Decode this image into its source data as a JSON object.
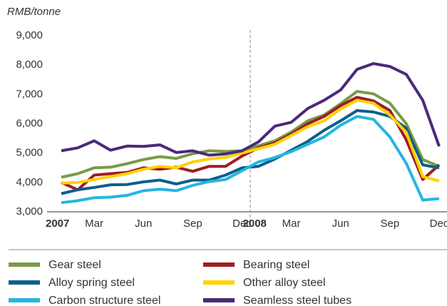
{
  "chart_data": {
    "type": "line",
    "y_axis_label": "RMB/tonne",
    "categories": [
      "2007",
      null,
      "Mar",
      null,
      null,
      "Jun",
      null,
      null,
      "Sep",
      null,
      null,
      "Dec",
      "2008",
      null,
      "Mar",
      null,
      null,
      "Jun",
      null,
      null,
      "Sep",
      null,
      null,
      "Dec"
    ],
    "ylim": [
      3000,
      9000
    ],
    "yticks": [
      {
        "value": 3000,
        "label": "3,000"
      },
      {
        "value": 4000,
        "label": "4,000"
      },
      {
        "value": 5000,
        "label": "5,000"
      },
      {
        "value": 6000,
        "label": "6,000"
      },
      {
        "value": 7000,
        "label": "7,000"
      },
      {
        "value": 8000,
        "label": "8,000"
      },
      {
        "value": 9000,
        "label": "9,000"
      }
    ],
    "series": [
      {
        "name": "Gear steel",
        "color": "#7a9a48",
        "values": [
          4180,
          4300,
          4500,
          4520,
          4640,
          4780,
          4880,
          4820,
          4980,
          5080,
          5060,
          5080,
          5250,
          5420,
          5720,
          6100,
          6300,
          6680,
          7100,
          7020,
          6700,
          6000,
          4780,
          4550
        ]
      },
      {
        "name": "Bearing steel",
        "color": "#a01c22",
        "values": [
          4000,
          3750,
          4250,
          4300,
          4340,
          4500,
          4450,
          4520,
          4380,
          4550,
          4550,
          4900,
          5180,
          5350,
          5650,
          6000,
          6250,
          6620,
          6900,
          6780,
          6450,
          5450,
          4100,
          4600
        ]
      },
      {
        "name": "Alloy spring steel",
        "color": "#0d5f8a",
        "values": [
          3620,
          3750,
          3830,
          3920,
          3930,
          4020,
          4080,
          3950,
          4080,
          4080,
          4250,
          4500,
          4550,
          4800,
          5100,
          5400,
          5780,
          6100,
          6450,
          6400,
          6250,
          5850,
          4600,
          4500
        ]
      },
      {
        "name": "Other alloy steel",
        "color": "#ffd200",
        "values": [
          3980,
          4000,
          4100,
          4200,
          4300,
          4450,
          4550,
          4500,
          4700,
          4800,
          4850,
          5000,
          5150,
          5300,
          5600,
          5900,
          6100,
          6500,
          6800,
          6700,
          6300,
          5700,
          4200,
          4050
        ]
      },
      {
        "name": "Carbon structure steel",
        "color": "#26b5e0",
        "values": [
          3310,
          3380,
          3480,
          3500,
          3560,
          3720,
          3770,
          3720,
          3900,
          4030,
          4100,
          4400,
          4700,
          4850,
          5050,
          5300,
          5550,
          5950,
          6250,
          6150,
          5550,
          4650,
          3400,
          3450
        ]
      },
      {
        "name": "Seamless steel tubes",
        "color": "#4a2a7a",
        "values": [
          5080,
          5180,
          5420,
          5100,
          5240,
          5230,
          5280,
          5020,
          5080,
          4930,
          4970,
          5080,
          5380,
          5920,
          6050,
          6520,
          6800,
          7150,
          7850,
          8050,
          7950,
          7680,
          6800,
          5230
        ]
      }
    ]
  }
}
